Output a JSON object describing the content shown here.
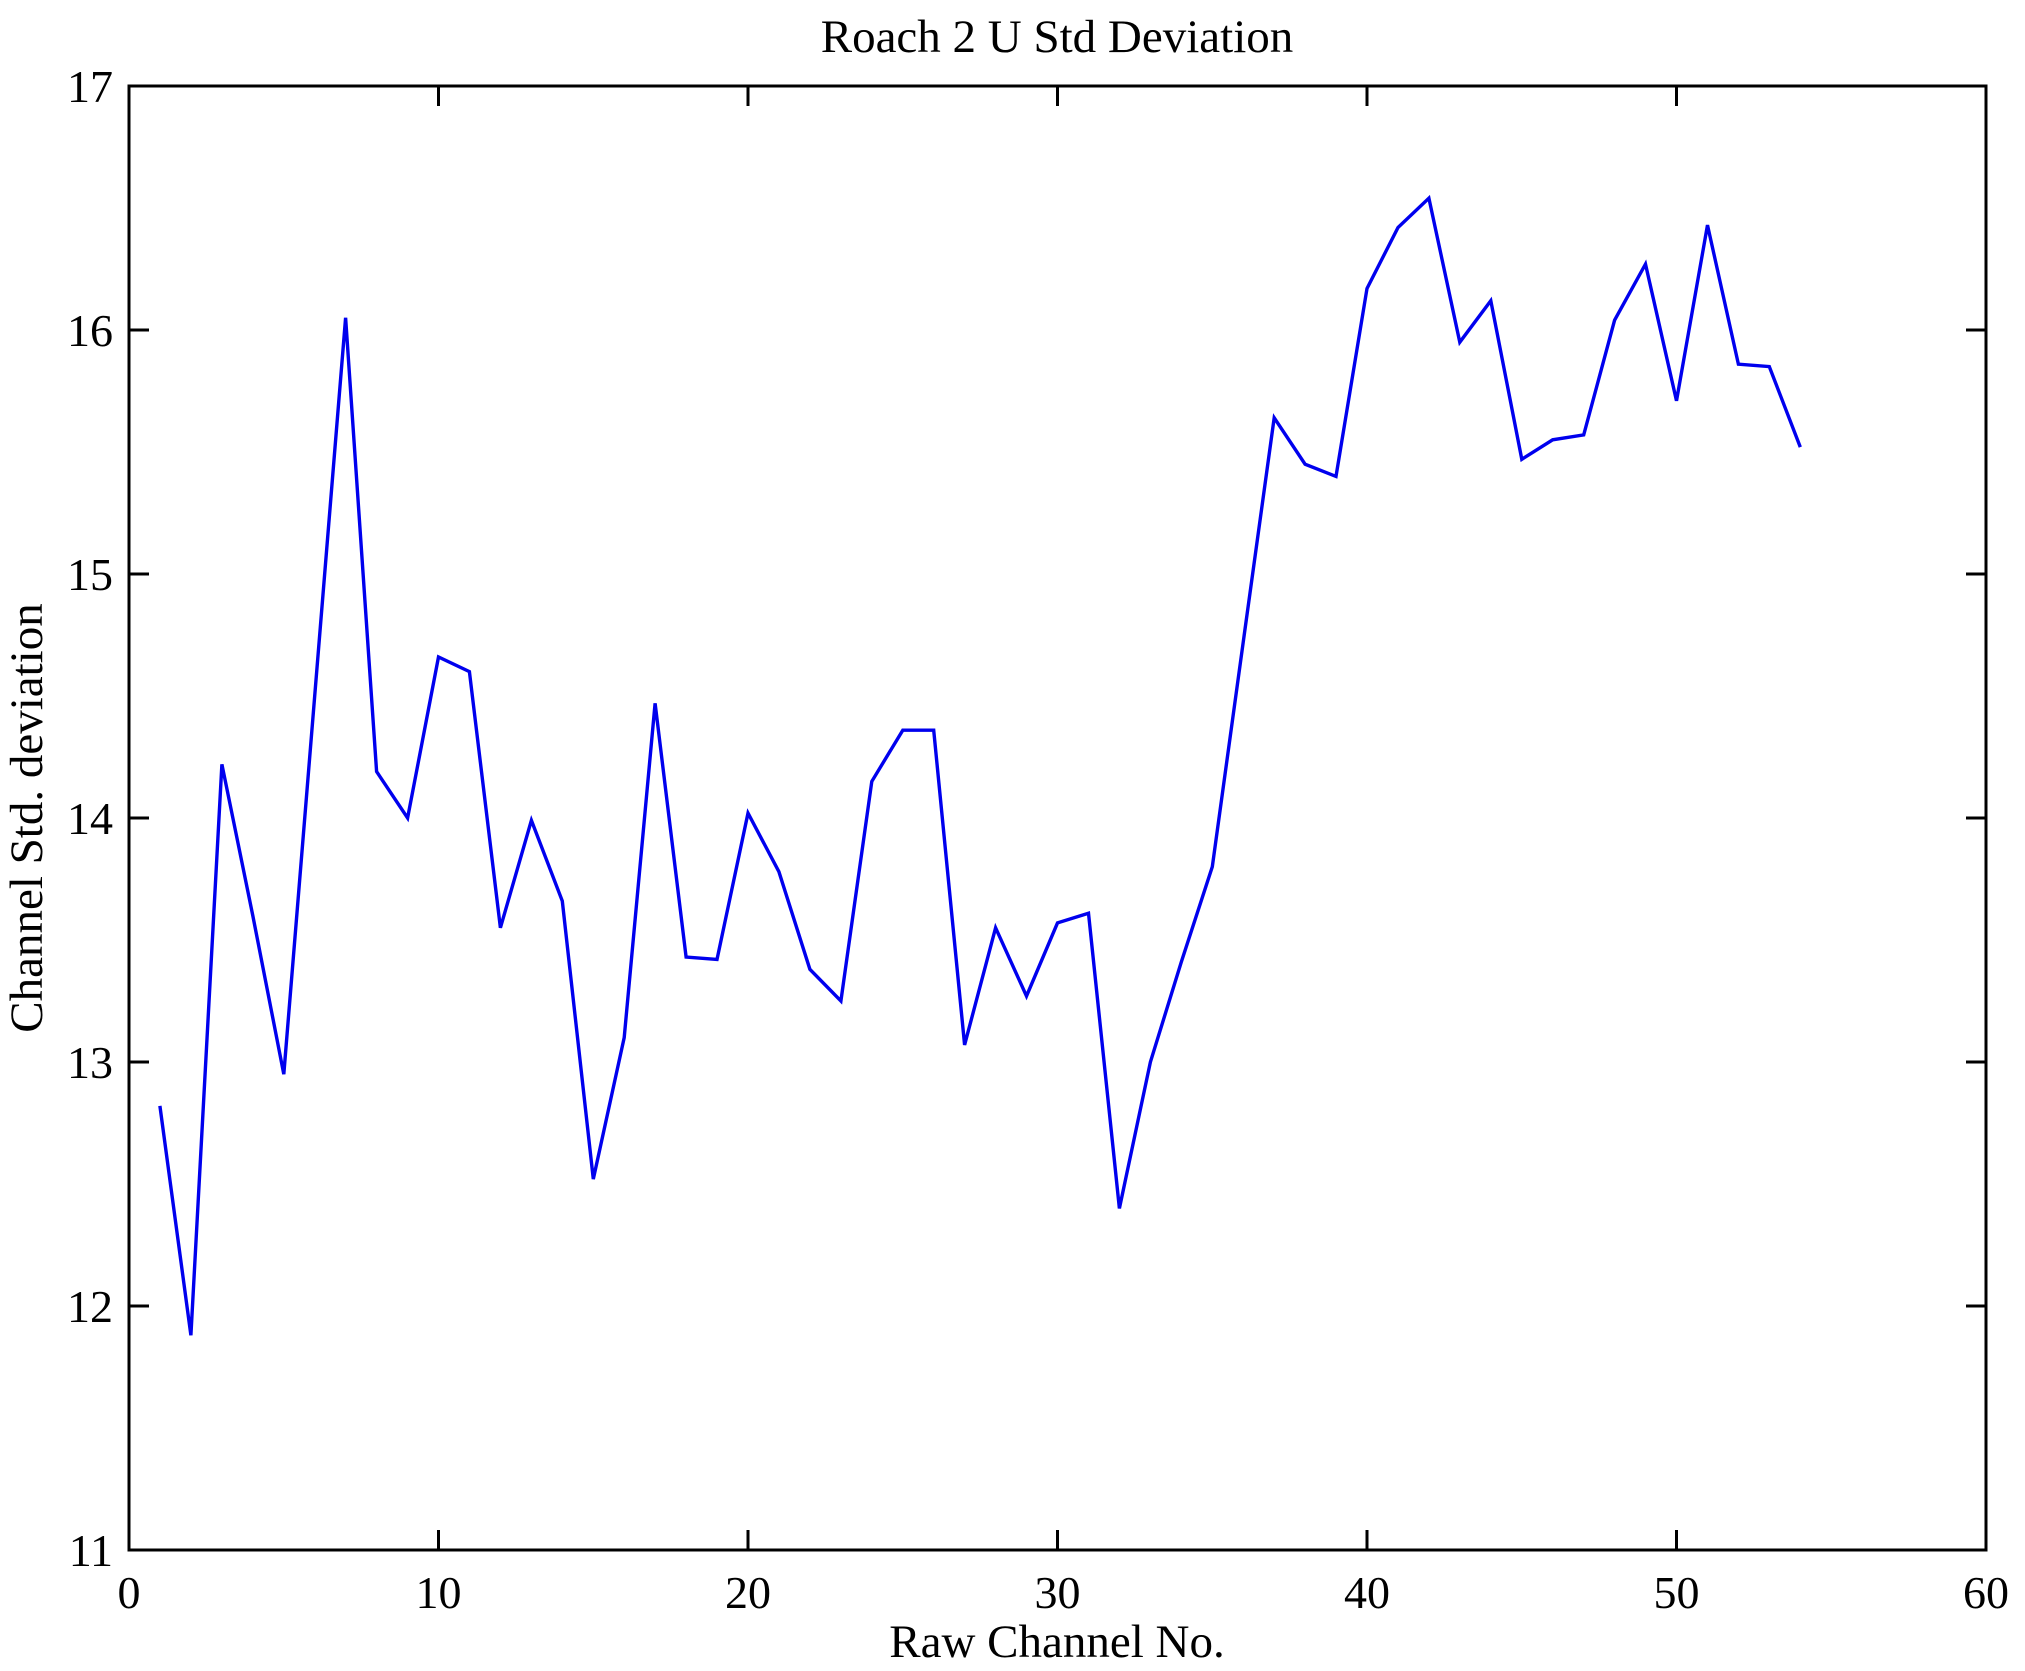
{
  "chart_data": {
    "type": "line",
    "title": "Roach 2 U Std Deviation",
    "xlabel": "Raw Channel No.",
    "ylabel": "Channel Std. deviation",
    "xlim": [
      0,
      60
    ],
    "ylim": [
      11,
      17
    ],
    "xticks": [
      0,
      10,
      20,
      30,
      40,
      50,
      60
    ],
    "yticks": [
      11,
      12,
      13,
      14,
      15,
      16,
      17
    ],
    "grid": false,
    "legend": null,
    "box": true,
    "line_color": "#0000EE",
    "axis_color": "#000000",
    "background": "#FFFFFF",
    "series": [
      {
        "name": "Channel std deviation",
        "x": [
          1,
          2,
          3,
          4,
          5,
          6,
          7,
          8,
          9,
          10,
          11,
          12,
          13,
          14,
          15,
          16,
          17,
          18,
          19,
          20,
          21,
          22,
          23,
          24,
          25,
          26,
          27,
          28,
          29,
          30,
          31,
          32,
          33,
          34,
          35,
          36,
          37,
          38,
          39,
          40,
          41,
          42,
          43,
          44,
          45,
          46,
          47,
          48,
          49,
          50,
          51,
          52,
          53,
          54
        ],
        "values": [
          12.82,
          11.88,
          14.22,
          13.6,
          12.95,
          14.5,
          16.05,
          14.19,
          14.0,
          14.66,
          14.6,
          13.55,
          13.99,
          13.66,
          12.52,
          13.1,
          14.47,
          13.43,
          13.42,
          14.02,
          13.78,
          13.38,
          13.25,
          14.15,
          14.36,
          14.36,
          13.07,
          13.55,
          13.27,
          13.57,
          13.61,
          12.4,
          13.0,
          13.41,
          13.8,
          14.72,
          15.64,
          15.45,
          15.4,
          16.17,
          16.42,
          16.54,
          15.95,
          16.12,
          15.47,
          15.55,
          15.57,
          16.04,
          16.27,
          15.71,
          16.43,
          15.86,
          15.85,
          15.52
        ]
      }
    ]
  }
}
